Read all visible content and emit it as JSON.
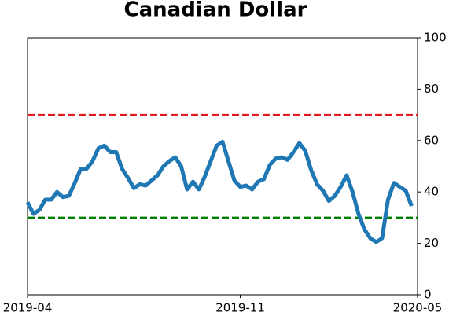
{
  "chart_data": {
    "type": "line",
    "title": "Canadian Dollar",
    "series": [
      {
        "color": "#1f77b4",
        "values": [
          36,
          31.5,
          33,
          37,
          37,
          40,
          38,
          38.5,
          43.5,
          49,
          49,
          52,
          57,
          58,
          55.5,
          55.5,
          49,
          45.5,
          41.5,
          43,
          42.5,
          44.5,
          46.5,
          50,
          52,
          53.5,
          50,
          41,
          44,
          41,
          46,
          52,
          58,
          59.5,
          52,
          44.5,
          42,
          42.5,
          41,
          44,
          45,
          50.5,
          53,
          53.5,
          52.5,
          55.5,
          59,
          56,
          48.5,
          43,
          40.5,
          36.5,
          38.5,
          42,
          46.5,
          40,
          31.5,
          25.5,
          22,
          20.5,
          22,
          37,
          43.5,
          42,
          40.5,
          34.5
        ]
      }
    ],
    "xlim": [
      0,
      66
    ],
    "xticks": [
      {
        "value": 0,
        "label": "2019-04"
      },
      {
        "value": 36,
        "label": "2019-11"
      },
      {
        "value": 66,
        "label": "2020-05"
      }
    ],
    "ylim": [
      0,
      100
    ],
    "yticks": [
      0,
      20,
      40,
      60,
      80,
      100
    ],
    "y_axis_side": "right",
    "hlines": [
      {
        "value": 70,
        "color": "#e41a1c"
      },
      {
        "value": 30,
        "color": "#008000"
      }
    ]
  }
}
